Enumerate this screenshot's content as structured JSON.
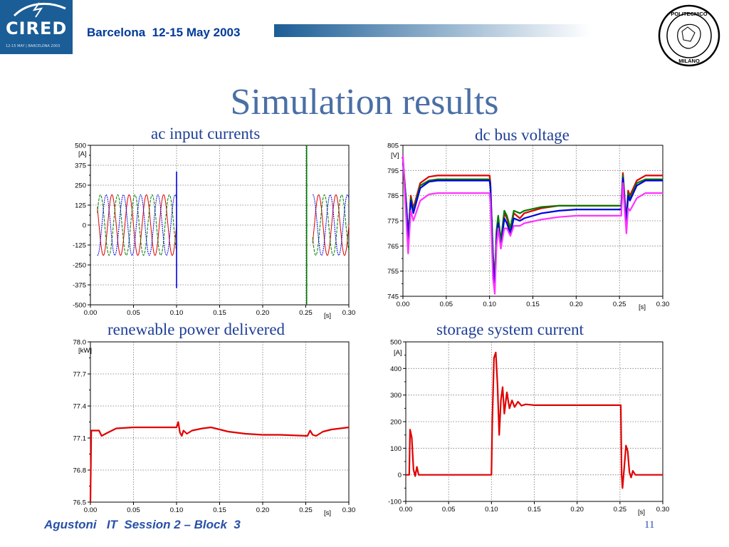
{
  "header": {
    "logo_text": "CIRED",
    "logo_subtext": "12-15 MAY | BARCELONA 2003",
    "event": "Barcelona  12-15 May 2003",
    "seal_top": "POLITECNICO",
    "seal_bottom": "MILANO"
  },
  "slide": {
    "title": "Simulation results"
  },
  "footer": {
    "left": "Agustoni   IT  Session 2 – Block  3",
    "page": "11"
  },
  "colors": {
    "red": "#e00000",
    "green": "#007a00",
    "blue": "#0000e0",
    "magenta": "#ff33ff",
    "title": "#4a6fa5"
  },
  "chart_data": [
    {
      "type": "line",
      "title": "ac input currents",
      "xlabel": "[s]",
      "ylabel": "[A]",
      "xlim": [
        0,
        0.3
      ],
      "ylim": [
        -500,
        500
      ],
      "xticks": [
        "0.00",
        "0.05",
        "0.10",
        "0.15",
        "0.20",
        "0.25",
        "0.30"
      ],
      "yticks": [
        "500",
        "375",
        "250",
        "125",
        "0",
        "-125",
        "-250",
        "-375",
        "-500"
      ],
      "grid": true,
      "series": [
        {
          "color": "red",
          "amplitude": 190,
          "phase_deg": 0,
          "freq_hz": 50,
          "segments": [
            [
              0.0,
              0.1
            ],
            [
              0.25,
              0.3
            ]
          ]
        },
        {
          "color": "green",
          "amplitude": 190,
          "phase_deg": -120,
          "freq_hz": 50,
          "segments": [
            [
              0.0,
              0.1
            ],
            [
              0.25,
              0.3
            ]
          ]
        },
        {
          "color": "blue",
          "amplitude": 190,
          "phase_deg": 120,
          "freq_hz": 50,
          "segments": [
            [
              0.0,
              0.1
            ],
            [
              0.25,
              0.3
            ]
          ]
        }
      ],
      "spikes": [
        {
          "x": 0.1,
          "ymin": -395,
          "ymax": 335,
          "color": "blue"
        },
        {
          "x": 0.251,
          "ymin": -500,
          "ymax": 500,
          "color": "green"
        }
      ]
    },
    {
      "type": "line",
      "title": "dc bus voltage",
      "xlabel": "[s]",
      "ylabel": "[V]",
      "xlim": [
        0,
        0.3
      ],
      "ylim": [
        745,
        805
      ],
      "xticks": [
        "0.00",
        "0.05",
        "0.10",
        "0.15",
        "0.20",
        "0.25",
        "0.30"
      ],
      "yticks": [
        "805",
        "795",
        "785",
        "775",
        "765",
        "755",
        "745"
      ],
      "grid": true,
      "series": [
        {
          "color": "red",
          "points": [
            [
              0,
              800
            ],
            [
              0.004,
              781
            ],
            [
              0.006,
              768
            ],
            [
              0.009,
              785
            ],
            [
              0.012,
              780
            ],
            [
              0.02,
              790
            ],
            [
              0.03,
              792.5
            ],
            [
              0.04,
              793
            ],
            [
              0.1,
              793
            ],
            [
              0.101,
              790
            ],
            [
              0.104,
              760
            ],
            [
              0.106,
              750
            ],
            [
              0.108,
              770
            ],
            [
              0.11,
              776
            ],
            [
              0.113,
              766
            ],
            [
              0.117,
              778
            ],
            [
              0.12,
              776
            ],
            [
              0.124,
              771
            ],
            [
              0.128,
              778
            ],
            [
              0.135,
              776
            ],
            [
              0.14,
              778
            ],
            [
              0.16,
              780
            ],
            [
              0.18,
              781
            ],
            [
              0.2,
              781
            ],
            [
              0.22,
              781
            ],
            [
              0.252,
              781
            ],
            [
              0.254,
              794
            ],
            [
              0.256,
              784
            ],
            [
              0.258,
              775
            ],
            [
              0.26,
              787
            ],
            [
              0.262,
              785
            ],
            [
              0.27,
              791
            ],
            [
              0.28,
              793
            ],
            [
              0.3,
              793
            ]
          ]
        },
        {
          "color": "green",
          "points": [
            [
              0,
              799
            ],
            [
              0.004,
              781
            ],
            [
              0.006,
              769
            ],
            [
              0.009,
              784
            ],
            [
              0.012,
              779
            ],
            [
              0.02,
              789
            ],
            [
              0.03,
              791
            ],
            [
              0.04,
              791.5
            ],
            [
              0.1,
              791.5
            ],
            [
              0.101,
              789
            ],
            [
              0.104,
              762
            ],
            [
              0.106,
              752
            ],
            [
              0.108,
              771
            ],
            [
              0.11,
              777
            ],
            [
              0.113,
              767
            ],
            [
              0.117,
              779
            ],
            [
              0.12,
              777
            ],
            [
              0.124,
              772
            ],
            [
              0.128,
              779
            ],
            [
              0.135,
              778
            ],
            [
              0.14,
              779
            ],
            [
              0.16,
              780.5
            ],
            [
              0.18,
              781
            ],
            [
              0.2,
              781
            ],
            [
              0.22,
              781
            ],
            [
              0.252,
              781
            ],
            [
              0.254,
              793
            ],
            [
              0.256,
              783
            ],
            [
              0.258,
              776
            ],
            [
              0.26,
              786
            ],
            [
              0.262,
              784
            ],
            [
              0.27,
              790
            ],
            [
              0.28,
              791.5
            ],
            [
              0.3,
              791.5
            ]
          ]
        },
        {
          "color": "blue",
          "points": [
            [
              0,
              798
            ],
            [
              0.004,
              780
            ],
            [
              0.006,
              767
            ],
            [
              0.009,
              783
            ],
            [
              0.012,
              778
            ],
            [
              0.02,
              788
            ],
            [
              0.03,
              790.5
            ],
            [
              0.04,
              791
            ],
            [
              0.1,
              791
            ],
            [
              0.101,
              788
            ],
            [
              0.104,
              758
            ],
            [
              0.106,
              749
            ],
            [
              0.108,
              768
            ],
            [
              0.11,
              774
            ],
            [
              0.113,
              764
            ],
            [
              0.117,
              776
            ],
            [
              0.12,
              774
            ],
            [
              0.124,
              770
            ],
            [
              0.128,
              776
            ],
            [
              0.135,
              775
            ],
            [
              0.14,
              776
            ],
            [
              0.16,
              778
            ],
            [
              0.18,
              779
            ],
            [
              0.2,
              779.5
            ],
            [
              0.22,
              779.5
            ],
            [
              0.252,
              779.5
            ],
            [
              0.254,
              792
            ],
            [
              0.256,
              782
            ],
            [
              0.258,
              774
            ],
            [
              0.26,
              785
            ],
            [
              0.262,
              783
            ],
            [
              0.27,
              789
            ],
            [
              0.28,
              791
            ],
            [
              0.3,
              791
            ]
          ]
        },
        {
          "color": "magenta",
          "points": [
            [
              0,
              801
            ],
            [
              0.004,
              774
            ],
            [
              0.006,
              762
            ],
            [
              0.009,
              779
            ],
            [
              0.012,
              775
            ],
            [
              0.02,
              783
            ],
            [
              0.03,
              785.5
            ],
            [
              0.04,
              786
            ],
            [
              0.1,
              786
            ],
            [
              0.101,
              782
            ],
            [
              0.104,
              752
            ],
            [
              0.106,
              746
            ],
            [
              0.108,
              765
            ],
            [
              0.11,
              772
            ],
            [
              0.113,
              764
            ],
            [
              0.117,
              772
            ],
            [
              0.12,
              772
            ],
            [
              0.124,
              769
            ],
            [
              0.128,
              773
            ],
            [
              0.135,
              773
            ],
            [
              0.14,
              774
            ],
            [
              0.16,
              775.5
            ],
            [
              0.18,
              776.5
            ],
            [
              0.2,
              777
            ],
            [
              0.22,
              777
            ],
            [
              0.252,
              777
            ],
            [
              0.254,
              790
            ],
            [
              0.256,
              779
            ],
            [
              0.258,
              770
            ],
            [
              0.26,
              780
            ],
            [
              0.262,
              779
            ],
            [
              0.27,
              784
            ],
            [
              0.28,
              786
            ],
            [
              0.3,
              786
            ]
          ]
        }
      ]
    },
    {
      "type": "line",
      "title": "renewable power delivered",
      "xlabel": "[s]",
      "ylabel": "[kW]",
      "xlim": [
        0,
        0.3
      ],
      "ylim": [
        76.5,
        78.0
      ],
      "xticks": [
        "0.00",
        "0.05",
        "0.10",
        "0.15",
        "0.20",
        "0.25",
        "0.30"
      ],
      "yticks": [
        "78.0",
        "77.7",
        "77.4",
        "77.1",
        "76.8",
        "76.5"
      ],
      "grid": true,
      "series": [
        {
          "color": "red",
          "points": [
            [
              0,
              76.5
            ],
            [
              0.001,
              77.17
            ],
            [
              0.01,
              77.17
            ],
            [
              0.013,
              77.12
            ],
            [
              0.02,
              77.15
            ],
            [
              0.03,
              77.19
            ],
            [
              0.05,
              77.2
            ],
            [
              0.07,
              77.2
            ],
            [
              0.1,
              77.2
            ],
            [
              0.102,
              77.25
            ],
            [
              0.104,
              77.15
            ],
            [
              0.106,
              77.12
            ],
            [
              0.108,
              77.17
            ],
            [
              0.112,
              77.14
            ],
            [
              0.118,
              77.17
            ],
            [
              0.13,
              77.19
            ],
            [
              0.14,
              77.2
            ],
            [
              0.15,
              77.18
            ],
            [
              0.16,
              77.16
            ],
            [
              0.18,
              77.14
            ],
            [
              0.2,
              77.13
            ],
            [
              0.22,
              77.13
            ],
            [
              0.252,
              77.12
            ],
            [
              0.255,
              77.17
            ],
            [
              0.258,
              77.13
            ],
            [
              0.262,
              77.12
            ],
            [
              0.27,
              77.16
            ],
            [
              0.28,
              77.18
            ],
            [
              0.3,
              77.2
            ]
          ]
        }
      ]
    },
    {
      "type": "line",
      "title": "storage system current",
      "xlabel": "[s]",
      "ylabel": "[A]",
      "xlim": [
        0,
        0.3
      ],
      "ylim": [
        -100,
        500
      ],
      "xticks": [
        "0.00",
        "0.05",
        "0.10",
        "0.15",
        "0.20",
        "0.25",
        "0.30"
      ],
      "yticks": [
        "500",
        "400",
        "300",
        "200",
        "100",
        "0",
        "-100"
      ],
      "grid": true,
      "series": [
        {
          "color": "red",
          "points": [
            [
              0,
              0
            ],
            [
              0.004,
              0
            ],
            [
              0.005,
              170
            ],
            [
              0.007,
              140
            ],
            [
              0.009,
              20
            ],
            [
              0.011,
              -5
            ],
            [
              0.013,
              30
            ],
            [
              0.015,
              0
            ],
            [
              0.1,
              0
            ],
            [
              0.101,
              200
            ],
            [
              0.103,
              440
            ],
            [
              0.105,
              460
            ],
            [
              0.107,
              340
            ],
            [
              0.109,
              150
            ],
            [
              0.111,
              280
            ],
            [
              0.113,
              330
            ],
            [
              0.115,
              230
            ],
            [
              0.118,
              310
            ],
            [
              0.121,
              250
            ],
            [
              0.124,
              280
            ],
            [
              0.127,
              255
            ],
            [
              0.131,
              275
            ],
            [
              0.135,
              260
            ],
            [
              0.14,
              265
            ],
            [
              0.15,
              262
            ],
            [
              0.2,
              262
            ],
            [
              0.251,
              262
            ],
            [
              0.252,
              0
            ],
            [
              0.253,
              -50
            ],
            [
              0.255,
              30
            ],
            [
              0.257,
              110
            ],
            [
              0.259,
              90
            ],
            [
              0.261,
              10
            ],
            [
              0.263,
              -10
            ],
            [
              0.265,
              15
            ],
            [
              0.268,
              0
            ],
            [
              0.3,
              0
            ]
          ]
        }
      ]
    }
  ]
}
